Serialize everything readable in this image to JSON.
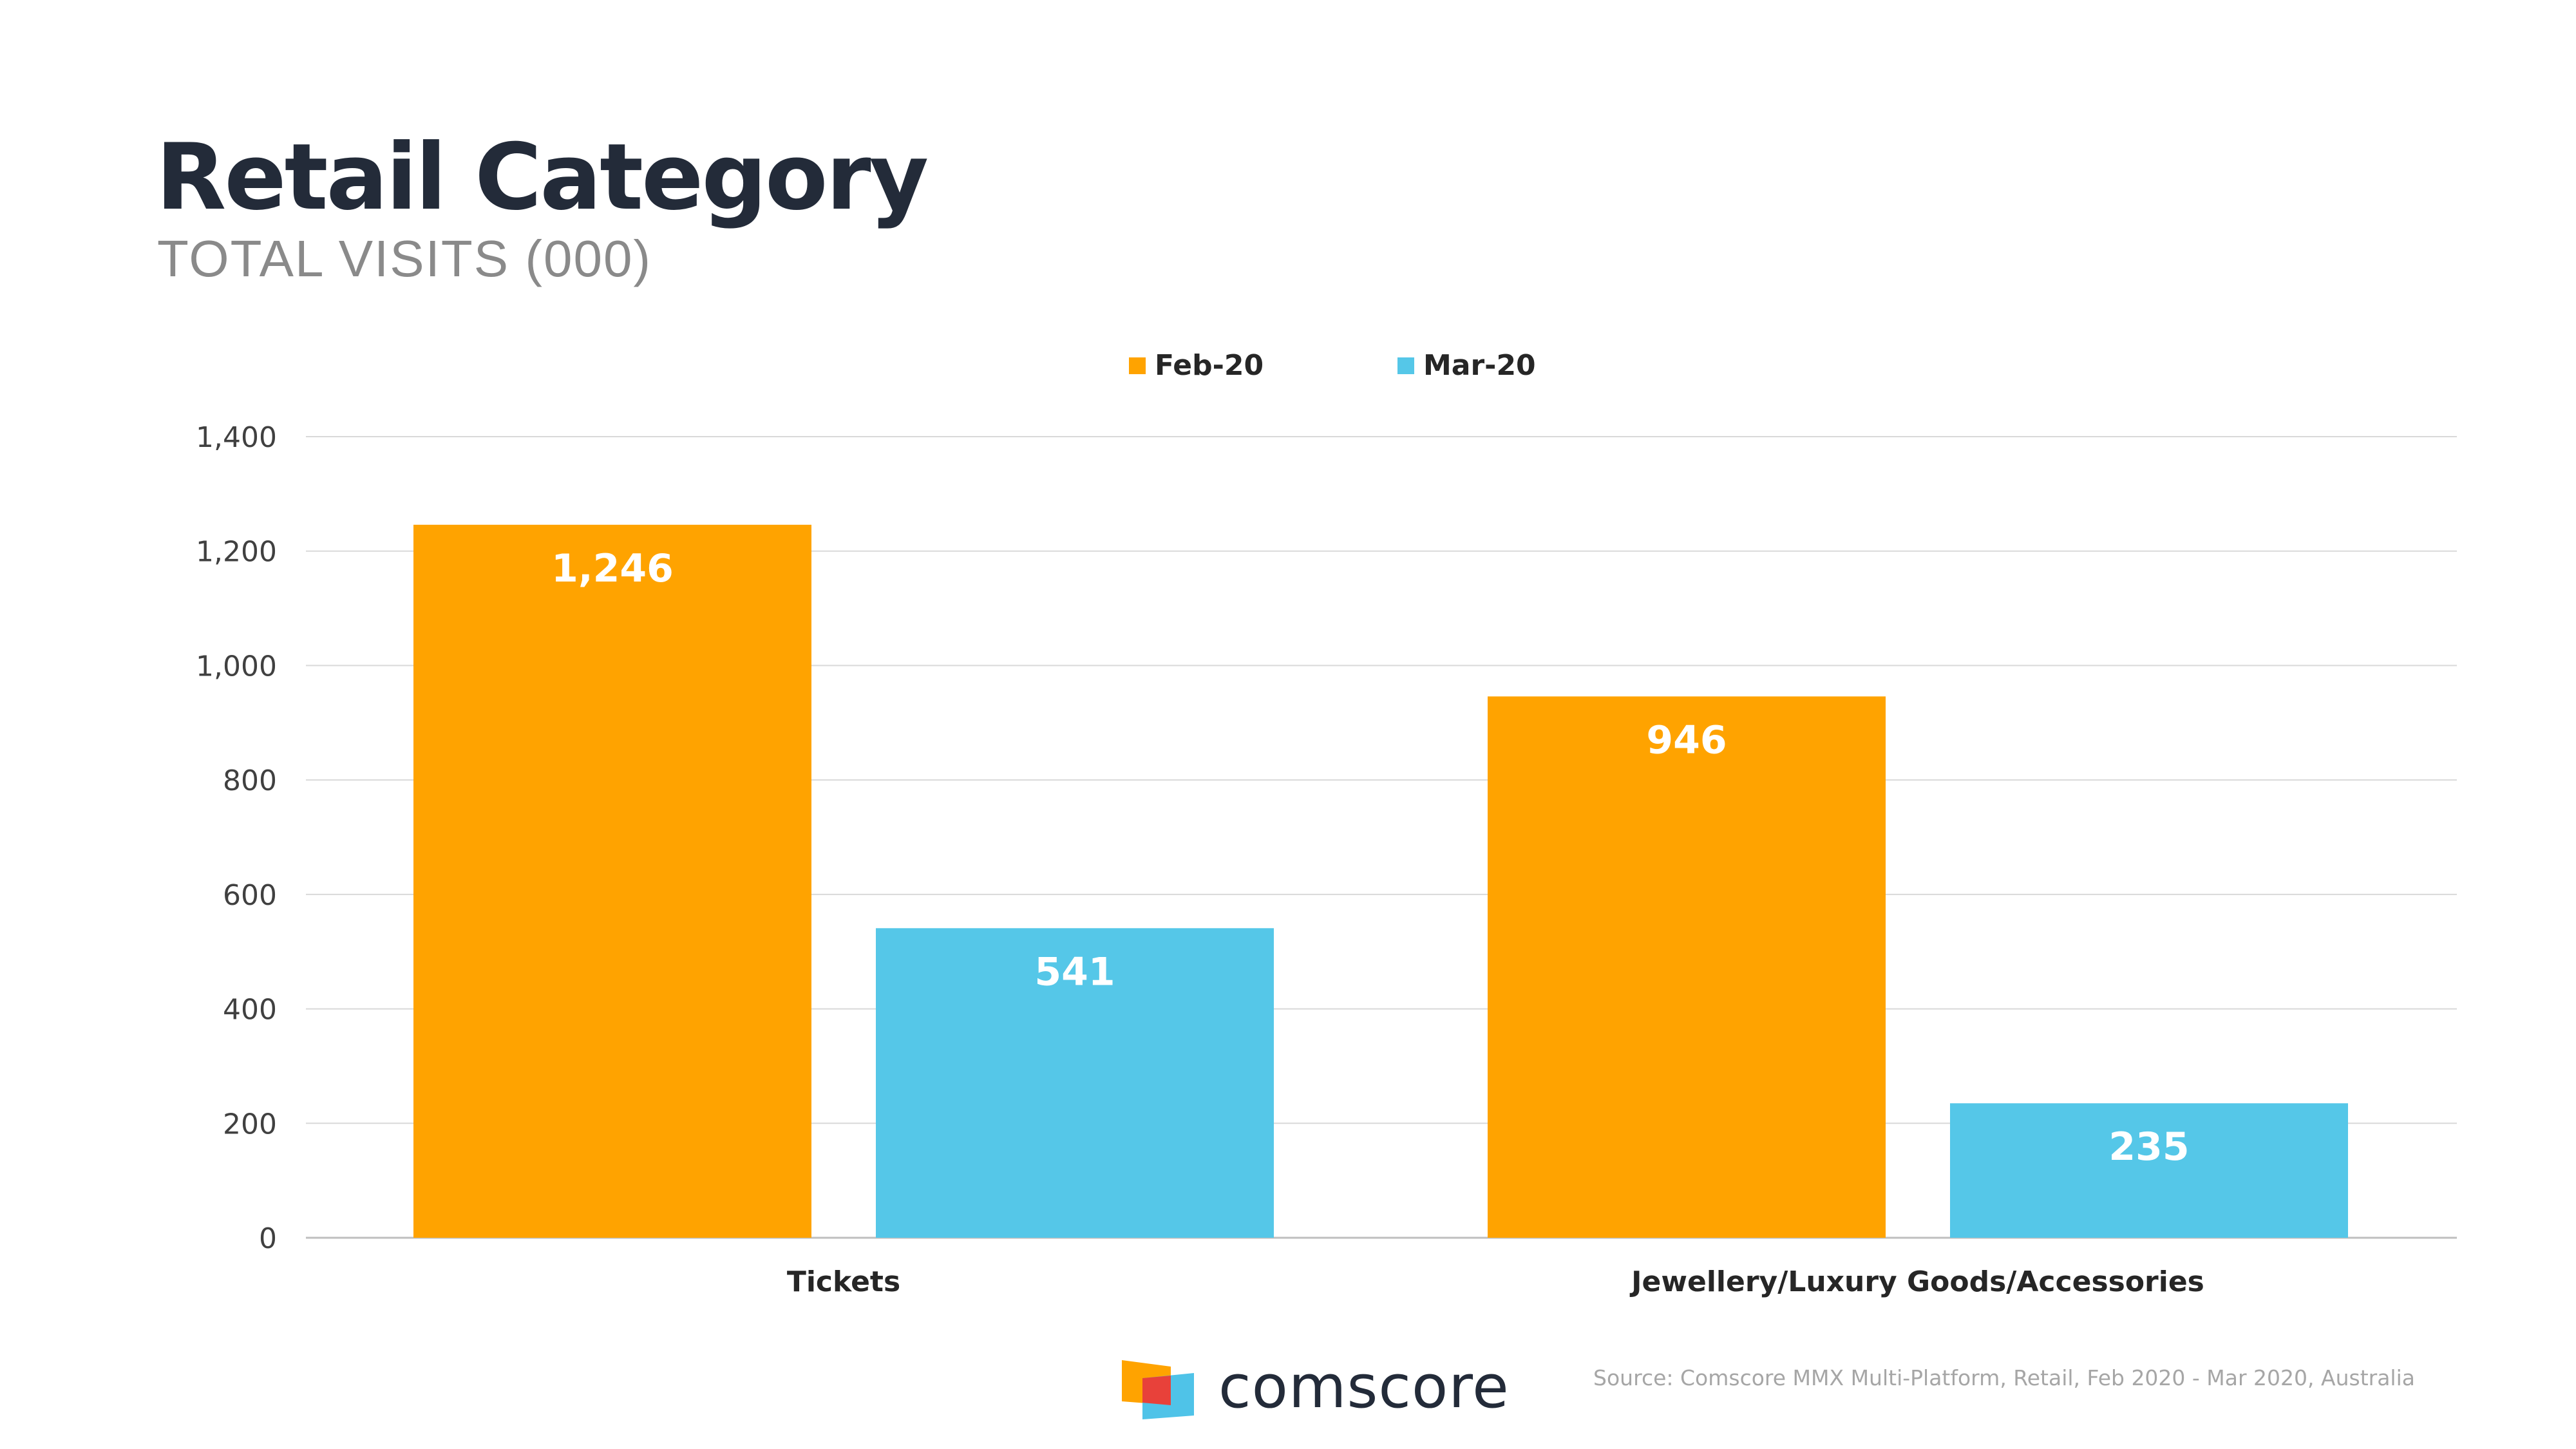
{
  "header": {
    "title": "Retail Category",
    "subtitle": "TOTAL VISITS (000)"
  },
  "chart_data": {
    "type": "bar",
    "categories": [
      "Tickets",
      "Jewellery/Luxury Goods/Accessories"
    ],
    "series": [
      {
        "name": "Feb-20",
        "values": [
          1246,
          946
        ],
        "labels": [
          "1,246",
          "946"
        ],
        "color": "#FFA300"
      },
      {
        "name": "Mar-20",
        "values": [
          541,
          235
        ],
        "labels": [
          "541",
          "235"
        ],
        "color": "#55C7E8"
      }
    ],
    "ylim": [
      0,
      1400
    ],
    "yticks": [
      0,
      200,
      400,
      600,
      800,
      1000,
      1200,
      1400
    ],
    "ytick_labels": [
      "0",
      "200",
      "400",
      "600",
      "800",
      "1,000",
      "1,200",
      "1,400"
    ],
    "grid": true,
    "legend_position": "top-center"
  },
  "footer": {
    "logo_text": "comscore",
    "source": "Source: Comscore MMX Multi-Platform, Retail, Feb 2020 - Mar 2020, Australia"
  }
}
